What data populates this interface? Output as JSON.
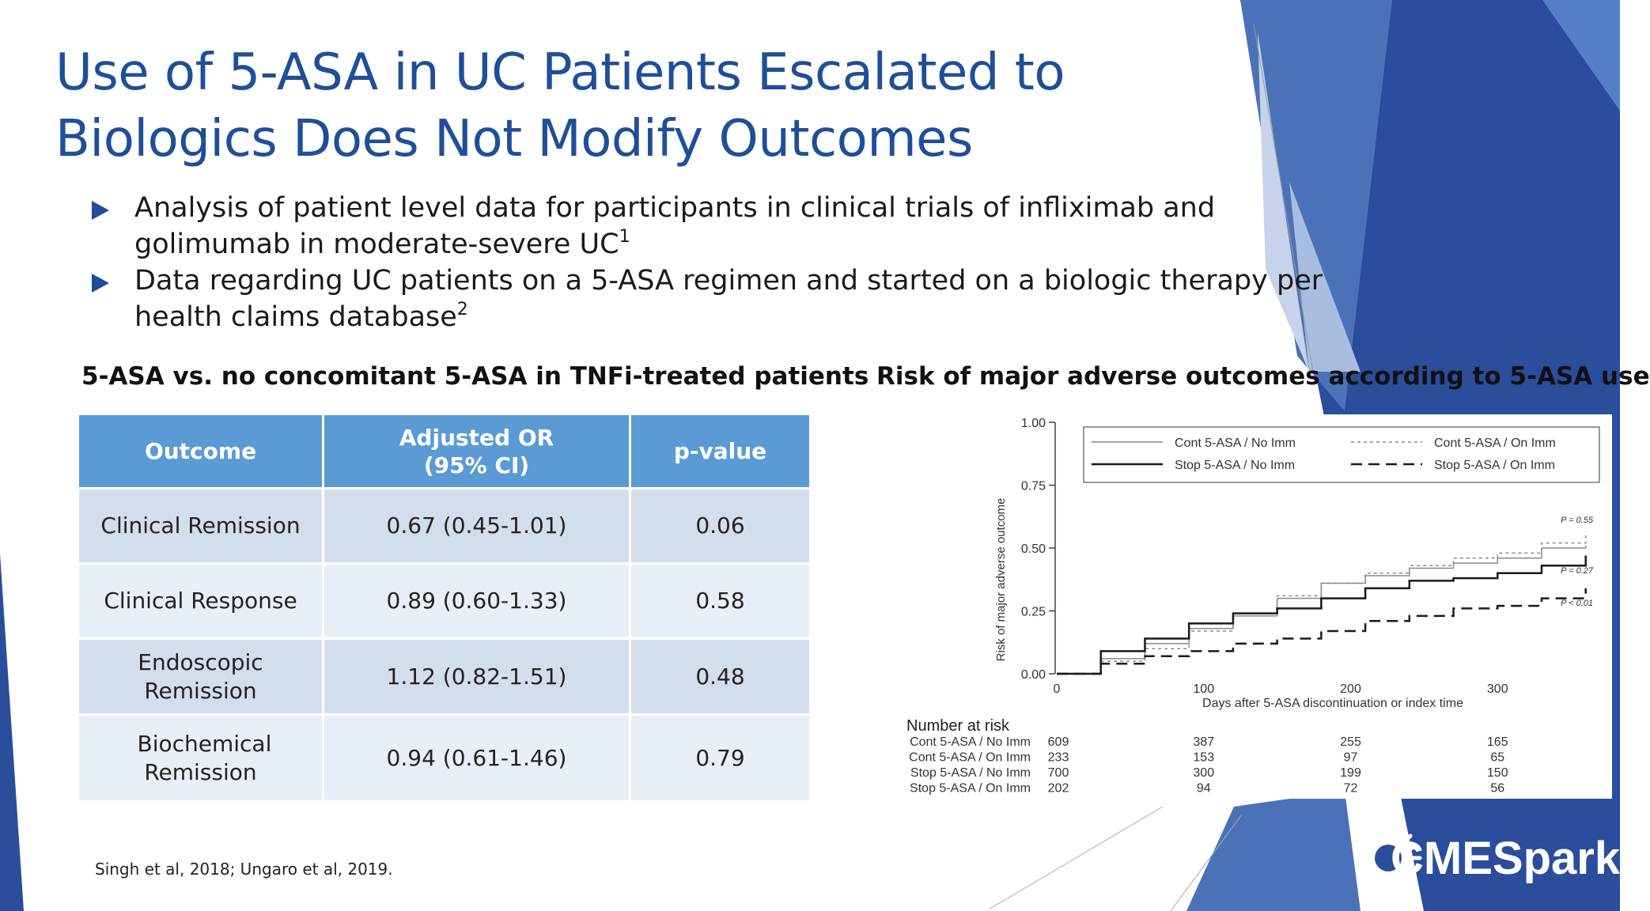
{
  "slide": {
    "title_line1": "Use of 5-ASA in UC Patients Escalated to",
    "title_line2": "Biologics Does Not Modify Outcomes",
    "bullets": [
      {
        "text": "Analysis of patient level data for participants in clinical trials of infliximab and golimumab in moderate-severe UC",
        "sup": "1"
      },
      {
        "text": "Data regarding UC patients on a 5-ASA regimen and started on a biologic therapy per health claims database",
        "sup": "2"
      }
    ],
    "footnote": "Singh et al, 2018; Ungaro et al, 2019.",
    "logo_text": "CMESpark",
    "colors": {
      "title": "#1f4e9a",
      "table_header": "#5b9bd5",
      "row_dark": "#d3deed",
      "row_light": "#e9eff7",
      "accent_blue": "#2a4d9c"
    }
  },
  "table_section": {
    "title": "5-ASA vs. no concomitant 5-ASA in TNFi-treated patients",
    "headers": [
      "Outcome",
      "Adjusted OR (95% CI)",
      "p-value"
    ],
    "rows": [
      [
        "Clinical Remission",
        "0.67 (0.45-1.01)",
        "0.06"
      ],
      [
        "Clinical Response",
        "0.89 (0.60-1.33)",
        "0.58"
      ],
      [
        "Endoscopic Remission",
        "1.12 (0.82-1.51)",
        "0.48"
      ],
      [
        "Biochemical Remission",
        "0.94 (0.61-1.46)",
        "0.79"
      ]
    ]
  },
  "chart_section": {
    "title": "Risk of major adverse outcomes according to 5-ASA use"
  },
  "chart_data": {
    "type": "line",
    "title": "",
    "xlabel": "Days after 5-ASA discontinuation or index time",
    "ylabel": "Risk of major adverse outcome",
    "xlim": [
      0,
      365
    ],
    "ylim": [
      0,
      1
    ],
    "x_ticks": [
      0,
      100,
      200,
      300
    ],
    "y_ticks": [
      "0.00",
      "0.25",
      "0.50",
      "0.75",
      "1.00"
    ],
    "legend_position": "top",
    "series": [
      {
        "name": "Cont 5-ASA / No Imm",
        "style": "solid-thin",
        "color": "#8a8a8a",
        "x": [
          0,
          30,
          60,
          90,
          120,
          150,
          180,
          210,
          240,
          270,
          300,
          330,
          360
        ],
        "y": [
          0,
          0.06,
          0.12,
          0.18,
          0.23,
          0.3,
          0.36,
          0.39,
          0.42,
          0.44,
          0.46,
          0.5,
          0.51
        ]
      },
      {
        "name": "Cont 5-ASA / On Imm",
        "style": "dotted",
        "color": "#8a8a8a",
        "x": [
          0,
          30,
          60,
          90,
          120,
          150,
          180,
          210,
          240,
          270,
          300,
          330,
          360
        ],
        "y": [
          0,
          0.05,
          0.1,
          0.17,
          0.24,
          0.31,
          0.36,
          0.4,
          0.43,
          0.46,
          0.48,
          0.52,
          0.56
        ]
      },
      {
        "name": "Stop 5-ASA / No Imm",
        "style": "solid-thick",
        "color": "#1a1a1a",
        "x": [
          0,
          30,
          60,
          90,
          120,
          150,
          180,
          210,
          240,
          270,
          300,
          330,
          360
        ],
        "y": [
          0,
          0.09,
          0.14,
          0.2,
          0.24,
          0.26,
          0.3,
          0.34,
          0.37,
          0.38,
          0.4,
          0.43,
          0.47
        ]
      },
      {
        "name": "Stop 5-ASA / On Imm",
        "style": "dashed",
        "color": "#1a1a1a",
        "x": [
          0,
          30,
          60,
          90,
          120,
          150,
          180,
          210,
          240,
          270,
          300,
          330,
          360
        ],
        "y": [
          0,
          0.04,
          0.07,
          0.09,
          0.12,
          0.14,
          0.17,
          0.21,
          0.23,
          0.26,
          0.27,
          0.3,
          0.34
        ]
      }
    ],
    "annotations": [
      "P = 0.55",
      "P = 0.27",
      "P < 0.01"
    ],
    "number_at_risk": {
      "title": "Number at risk",
      "rows": [
        {
          "label": "Cont 5-ASA / No Imm",
          "values": [
            "609",
            "387",
            "255",
            "165"
          ]
        },
        {
          "label": "Cont 5-ASA / On Imm",
          "values": [
            "233",
            "153",
            "97",
            "65"
          ]
        },
        {
          "label": "Stop 5-ASA / No Imm",
          "values": [
            "700",
            "300",
            "199",
            "150"
          ]
        },
        {
          "label": "Stop 5-ASA / On Imm",
          "values": [
            "202",
            "94",
            "72",
            "56"
          ]
        }
      ]
    }
  }
}
